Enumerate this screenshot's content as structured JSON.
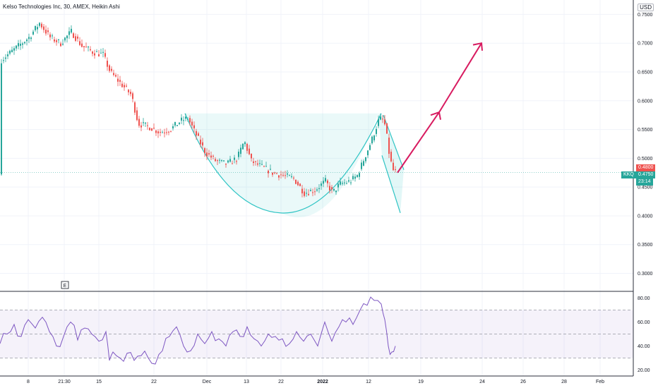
{
  "header": {
    "title": "Kelso Technologies Inc, 30, AMEX, Heikin Ashi",
    "currency": "USD"
  },
  "colors": {
    "up": "#26a69a",
    "down": "#ef5350",
    "pattern": "#2fc4c4",
    "arrow": "#d81b60",
    "rsi": "#7e57c2"
  },
  "chart_data": [
    {
      "type": "candlestick",
      "title": "",
      "ylim": [
        0.27,
        0.775
      ],
      "y_ticks": [
        "0.7500",
        "0.7000",
        "0.6500",
        "0.6000",
        "0.5500",
        "0.5000",
        "0.4500",
        "0.4000",
        "0.3500",
        "0.3000"
      ],
      "x_ticks": [
        "8",
        "21:30",
        "15",
        "22",
        "Dec",
        "13",
        "22",
        "2022",
        "12",
        "19",
        "24",
        "26",
        "28",
        "Feb"
      ],
      "price_tags": {
        "symbol": "KKQ",
        "last": "0.4750",
        "countdown": "23:14",
        "high": "0.4800"
      },
      "earnings_marker": "E",
      "series_path": [
        [
          0,
          0.67
        ],
        [
          20,
          0.69
        ],
        [
          40,
          0.71
        ],
        [
          55,
          0.735
        ],
        [
          70,
          0.71
        ],
        [
          85,
          0.7
        ],
        [
          100,
          0.72
        ],
        [
          115,
          0.695
        ],
        [
          130,
          0.685
        ],
        [
          145,
          0.68
        ],
        [
          155,
          0.65
        ],
        [
          170,
          0.63
        ],
        [
          185,
          0.61
        ],
        [
          195,
          0.56
        ],
        [
          210,
          0.555
        ],
        [
          225,
          0.545
        ],
        [
          240,
          0.55
        ],
        [
          255,
          0.565
        ],
        [
          265,
          0.57
        ],
        [
          275,
          0.545
        ],
        [
          290,
          0.51
        ],
        [
          305,
          0.495
        ],
        [
          320,
          0.49
        ],
        [
          335,
          0.5
        ],
        [
          345,
          0.53
        ],
        [
          355,
          0.495
        ],
        [
          370,
          0.485
        ],
        [
          385,
          0.475
        ],
        [
          400,
          0.47
        ],
        [
          415,
          0.465
        ],
        [
          430,
          0.44
        ],
        [
          445,
          0.445
        ],
        [
          460,
          0.46
        ],
        [
          470,
          0.44
        ],
        [
          480,
          0.455
        ],
        [
          495,
          0.46
        ],
        [
          505,
          0.47
        ],
        [
          515,
          0.5
        ],
        [
          525,
          0.53
        ],
        [
          535,
          0.565
        ],
        [
          540,
          0.57
        ],
        [
          545,
          0.555
        ],
        [
          550,
          0.51
        ],
        [
          555,
          0.48
        ],
        [
          560,
          0.475
        ]
      ]
    },
    {
      "type": "line",
      "title": "",
      "ylim": [
        15,
        85
      ],
      "y_ticks": [
        "80.00",
        "60.00",
        "40.00",
        "20.00"
      ],
      "bands": [
        30,
        50,
        70
      ],
      "x": [
        0,
        10,
        20,
        30,
        40,
        50,
        60,
        70,
        80,
        90,
        100,
        110,
        120,
        130,
        140,
        150,
        155,
        160,
        170,
        180,
        190,
        200,
        210,
        220,
        230,
        240,
        250,
        260,
        270,
        280,
        290,
        300,
        310,
        320,
        330,
        340,
        350,
        360,
        370,
        380,
        390,
        400,
        410,
        420,
        430,
        440,
        450,
        460,
        470,
        480,
        490,
        500,
        510,
        520,
        530,
        540,
        545,
        550,
        555,
        560
      ],
      "values": [
        42,
        50,
        58,
        48,
        62,
        55,
        64,
        52,
        40,
        48,
        60,
        45,
        55,
        50,
        44,
        52,
        28,
        35,
        30,
        34,
        28,
        32,
        30,
        25,
        36,
        48,
        56,
        40,
        36,
        50,
        42,
        52,
        46,
        40,
        52,
        48,
        56,
        46,
        40,
        50,
        48,
        46,
        42,
        52,
        44,
        50,
        40,
        60,
        44,
        56,
        60,
        58,
        70,
        74,
        78,
        75,
        62,
        40,
        35,
        40
      ]
    }
  ]
}
